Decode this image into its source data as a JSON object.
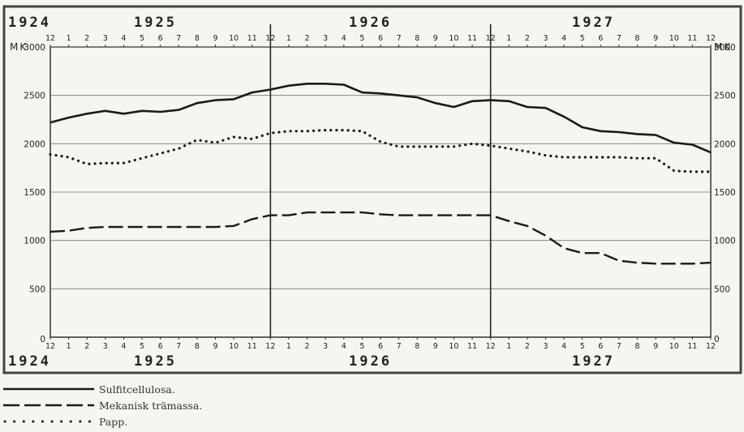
{
  "chart_data": {
    "type": "line",
    "unit_label_left": "MK",
    "unit_label_right": "MK",
    "ylim": [
      0,
      3000
    ],
    "y_ticks": [
      "0",
      "500",
      "1000",
      "1500",
      "2000",
      "2500",
      "3000"
    ],
    "year_labels_top": [
      "1924",
      "1925",
      "1926",
      "1927"
    ],
    "year_labels_bottom": [
      "1924",
      "1925",
      "1926",
      "1927"
    ],
    "month_ticks": [
      "12",
      "1",
      "2",
      "3",
      "4",
      "5",
      "6",
      "7",
      "8",
      "9",
      "10",
      "11",
      "12",
      "1",
      "2",
      "3",
      "4",
      "5",
      "6",
      "7",
      "8",
      "9",
      "10",
      "11",
      "12",
      "1",
      "2",
      "3",
      "4",
      "5",
      "6",
      "7",
      "8",
      "9",
      "10",
      "11",
      "12"
    ],
    "grid": true,
    "year_separators_at_month_index": [
      12,
      24
    ],
    "series": [
      {
        "name": "Sulfitcellulosa.",
        "style": "solid",
        "values": [
          2220,
          2270,
          2310,
          2340,
          2310,
          2340,
          2330,
          2350,
          2420,
          2450,
          2460,
          2530,
          2560,
          2600,
          2620,
          2620,
          2610,
          2530,
          2520,
          2500,
          2480,
          2420,
          2380,
          2440,
          2450,
          2440,
          2380,
          2370,
          2280,
          2170,
          2130,
          2120,
          2100,
          2090,
          2010,
          1990,
          1910
        ]
      },
      {
        "name": "Mekanisk trämassa.",
        "style": "dashed",
        "values": [
          1090,
          1100,
          1130,
          1140,
          1140,
          1140,
          1140,
          1140,
          1140,
          1140,
          1150,
          1220,
          1260,
          1260,
          1290,
          1290,
          1290,
          1290,
          1270,
          1260,
          1260,
          1260,
          1260,
          1260,
          1260,
          1200,
          1150,
          1050,
          920,
          870,
          870,
          790,
          770,
          760,
          760,
          760,
          770
        ]
      },
      {
        "name": "Papp.",
        "style": "dotted",
        "values": [
          1890,
          1860,
          1790,
          1800,
          1800,
          1850,
          1900,
          1950,
          2040,
          2010,
          2070,
          2050,
          2110,
          2130,
          2130,
          2140,
          2140,
          2130,
          2020,
          1970,
          1970,
          1970,
          1970,
          2000,
          1980,
          1950,
          1920,
          1880,
          1860,
          1860,
          1860,
          1860,
          1850,
          1850,
          1720,
          1710,
          1710
        ]
      }
    ]
  },
  "legend": [
    {
      "label": "Sulfitcellulosa.",
      "style": "solid"
    },
    {
      "label": "Mekanisk trämassa.",
      "style": "dashed"
    },
    {
      "label": "Papp.",
      "style": "dotted"
    }
  ]
}
